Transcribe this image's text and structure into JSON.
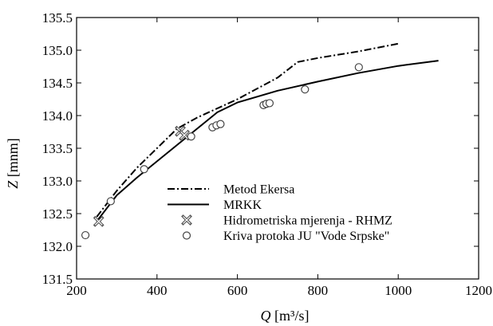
{
  "chart_data": {
    "type": "line",
    "title": "",
    "xlabel": "Q [m³/s]",
    "ylabel": "Z [mnm]",
    "xlim": [
      200,
      1200
    ],
    "ylim": [
      131.5,
      135.5
    ],
    "xticks": [
      200,
      400,
      600,
      800,
      1000,
      1200
    ],
    "yticks": [
      131.5,
      132.0,
      132.5,
      133.0,
      133.5,
      134.0,
      134.5,
      135.0,
      135.5
    ],
    "grid": false,
    "legend_position": "bottom-right",
    "series": [
      {
        "name": "Metod Ekersa",
        "kind": "line",
        "style": "dash-dot",
        "color": "#000000",
        "points": [
          [
            250,
            132.45
          ],
          [
            300,
            132.85
          ],
          [
            350,
            133.2
          ],
          [
            400,
            133.5
          ],
          [
            450,
            133.8
          ],
          [
            500,
            133.97
          ],
          [
            600,
            134.25
          ],
          [
            700,
            134.58
          ],
          [
            750,
            134.82
          ],
          [
            800,
            134.88
          ],
          [
            900,
            134.98
          ],
          [
            1000,
            135.1
          ]
        ]
      },
      {
        "name": "MRKK",
        "kind": "line",
        "style": "solid",
        "color": "#000000",
        "points": [
          [
            250,
            132.38
          ],
          [
            300,
            132.78
          ],
          [
            350,
            133.05
          ],
          [
            400,
            133.3
          ],
          [
            450,
            133.55
          ],
          [
            500,
            133.8
          ],
          [
            550,
            134.05
          ],
          [
            600,
            134.2
          ],
          [
            700,
            134.38
          ],
          [
            800,
            134.52
          ],
          [
            900,
            134.65
          ],
          [
            1000,
            134.76
          ],
          [
            1100,
            134.84
          ]
        ]
      },
      {
        "name": "Hidrometriska mjerenja - RHMZ",
        "kind": "scatter",
        "marker": "x-box",
        "color": "#555555",
        "points": [
          [
            255,
            132.38
          ],
          [
            458,
            133.76
          ],
          [
            468,
            133.7
          ]
        ]
      },
      {
        "name": "Kriva protoka JU \"Vode Srpske\"",
        "kind": "scatter",
        "marker": "circle",
        "color": "#444444",
        "points": [
          [
            222,
            132.17
          ],
          [
            285,
            132.69
          ],
          [
            368,
            133.18
          ],
          [
            485,
            133.68
          ],
          [
            538,
            133.82
          ],
          [
            548,
            133.85
          ],
          [
            558,
            133.87
          ],
          [
            665,
            134.16
          ],
          [
            672,
            134.18
          ],
          [
            680,
            134.19
          ],
          [
            768,
            134.4
          ],
          [
            902,
            134.74
          ]
        ]
      }
    ]
  }
}
